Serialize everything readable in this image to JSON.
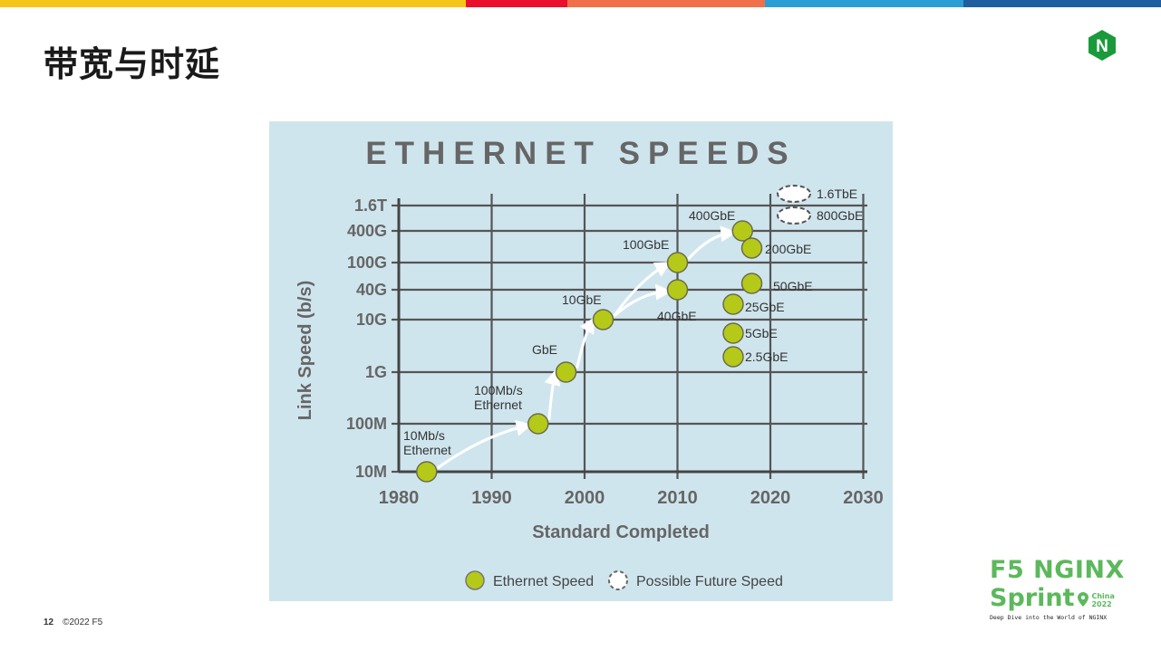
{
  "slide": {
    "title": "带宽与时延",
    "page_number": "12",
    "copyright": "©2022 F5",
    "bar_colors": [
      "#f5c518",
      "#e8102c",
      "#f0704a",
      "#2a9fd6",
      "#1f5fa0"
    ]
  },
  "brand": {
    "logo_letter": "N",
    "line1": "F5 NGINX",
    "line2": "Sprint",
    "china": "China",
    "year": "2022",
    "tagline": "Deep Dive into the World of NGINX",
    "green": "#5cb85c"
  },
  "chart_data": {
    "type": "scatter",
    "title": "ETHERNET SPEEDS",
    "xlabel": "Standard Completed",
    "ylabel": "Link Speed (b/s)",
    "x_ticks": [
      "1980",
      "1990",
      "2000",
      "2010",
      "2020",
      "2030"
    ],
    "xlim": [
      1980,
      2030
    ],
    "y_ticks": [
      "1.6T",
      "400G",
      "100G",
      "40G",
      "10G",
      "1G",
      "100M",
      "10M"
    ],
    "legend": [
      "Ethernet Speed",
      "Possible Future Speed"
    ],
    "point_color": "#b5c918",
    "points": [
      {
        "label": "10Mb/s\nEthernet",
        "year": 1983,
        "speed": "10M"
      },
      {
        "label": "100Mb/s\nEthernet",
        "year": 1995,
        "speed": "100M"
      },
      {
        "label": "GbE",
        "year": 1998,
        "speed": "1G"
      },
      {
        "label": "10GbE",
        "year": 2002,
        "speed": "10G"
      },
      {
        "label": "40GbE",
        "year": 2010,
        "speed": "40G"
      },
      {
        "label": "100GbE",
        "year": 2010,
        "speed": "100G"
      },
      {
        "label": "400GbE",
        "year": 2017,
        "speed": "400G"
      },
      {
        "label": "200GbE",
        "year": 2018,
        "speed": "200G"
      },
      {
        "label": "50GbE",
        "year": 2018,
        "speed": "50G"
      },
      {
        "label": "25GbE",
        "year": 2016,
        "speed": "25G"
      },
      {
        "label": "5GbE",
        "year": 2016,
        "speed": "5G"
      },
      {
        "label": "2.5GbE",
        "year": 2016,
        "speed": "2.5G"
      }
    ],
    "future_points": [
      {
        "label": "1.6TbE",
        "speed": "1.6T"
      },
      {
        "label": "800GbE",
        "speed": "800G"
      }
    ]
  }
}
